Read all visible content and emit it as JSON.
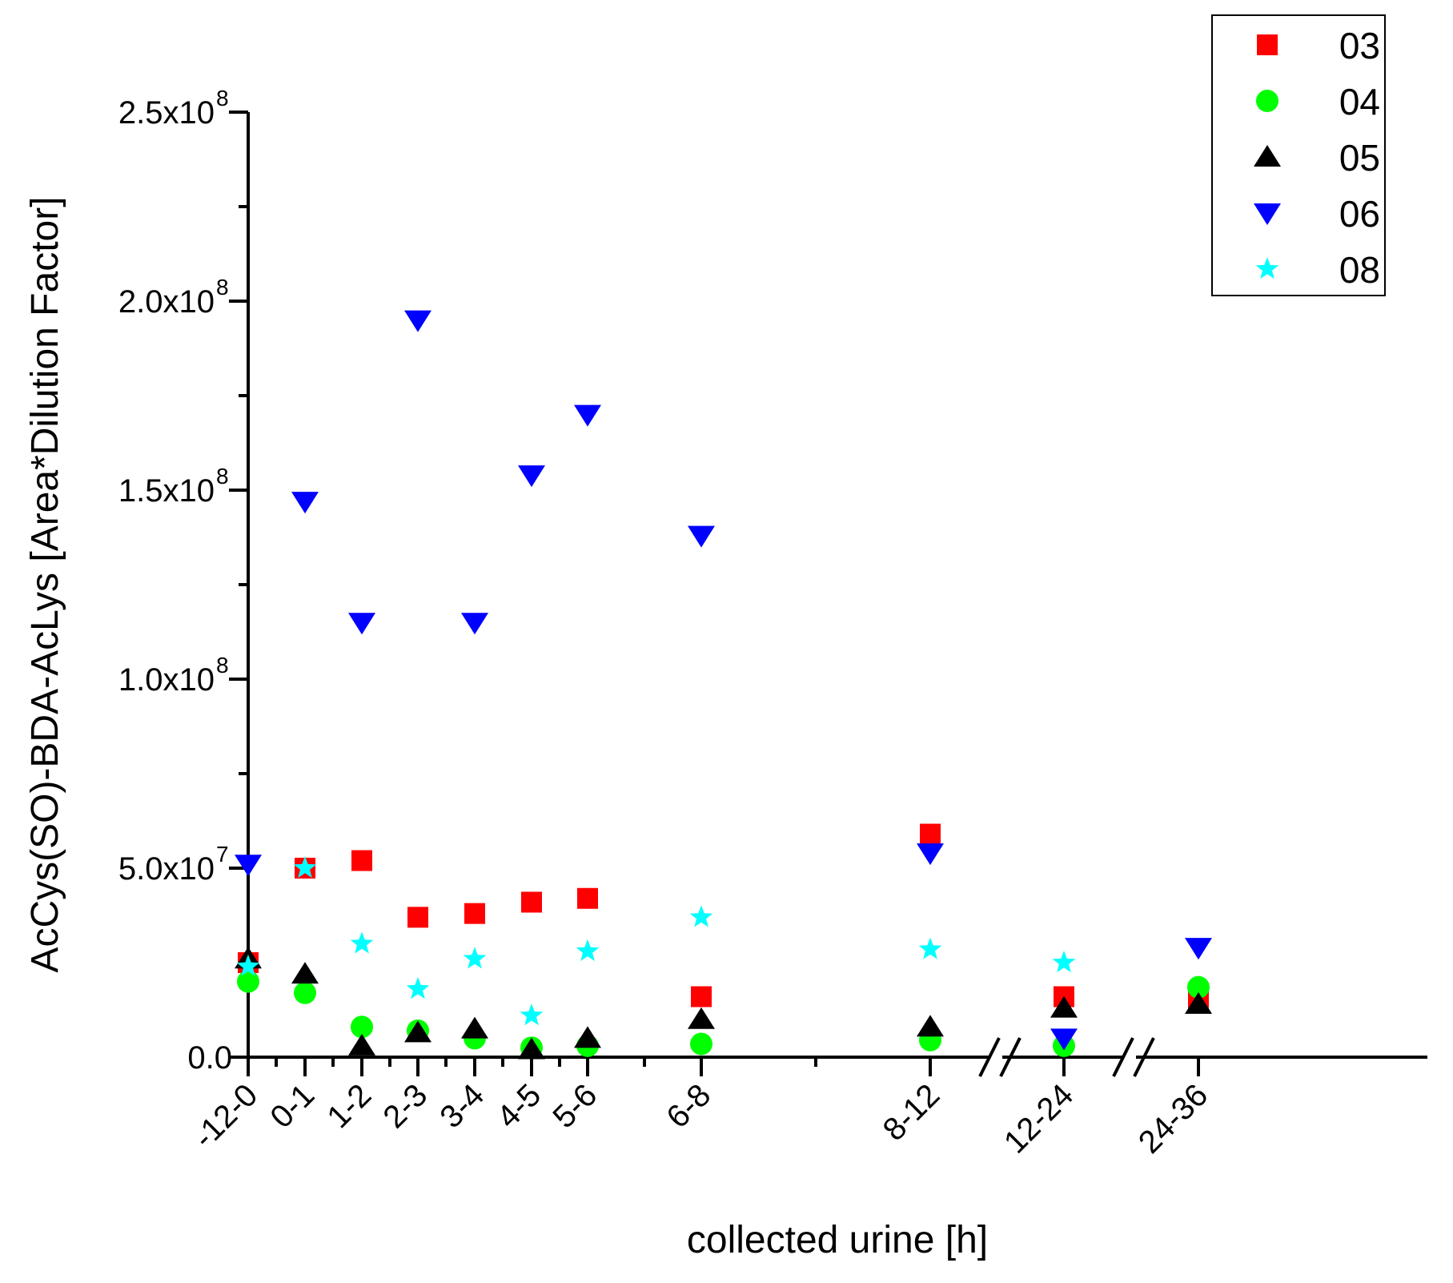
{
  "chart_data": {
    "type": "scatter",
    "title": "",
    "xlabel": "collected urine [h]",
    "ylabel": "AcCys(SO)-BDA-AcLys [Area*Dilution Factor]",
    "ylim": [
      0,
      250000000
    ],
    "y_ticks": [
      {
        "value": 0,
        "label": "0.0",
        "exp": ""
      },
      {
        "value": 50000000,
        "label": "5.0x10",
        "exp": "7"
      },
      {
        "value": 100000000,
        "label": "1.0x10",
        "exp": "8"
      },
      {
        "value": 150000000,
        "label": "1.5x10",
        "exp": "8"
      },
      {
        "value": 200000000,
        "label": "2.0x10",
        "exp": "8"
      },
      {
        "value": 250000000,
        "label": "2.5x10",
        "exp": "8"
      }
    ],
    "categories": [
      "-12-0",
      "0-1",
      "1-2",
      "2-3",
      "3-4",
      "4-5",
      "5-6",
      "6-8",
      "8-12",
      "12-24",
      "24-36"
    ],
    "axis_breaks": [
      "between 8-12 and 12-24",
      "between 12-24 and 24-36"
    ],
    "grid": false,
    "legend_position": "top-right",
    "series": [
      {
        "name": "03",
        "marker": "square",
        "color": "#ff0000",
        "values": [
          25000000,
          50000000,
          52000000,
          37000000,
          38000000,
          41000000,
          42000000,
          16000000,
          59000000,
          16000000,
          15000000
        ]
      },
      {
        "name": "04",
        "marker": "circle",
        "color": "#00ff00",
        "values": [
          20000000,
          17000000,
          8000000,
          7000000,
          5000000,
          2500000,
          3000000,
          3500000,
          4500000,
          3000000,
          18500000
        ]
      },
      {
        "name": "05",
        "marker": "triangle-up",
        "color": "#000000",
        "values": [
          26000000,
          22000000,
          3000000,
          6500000,
          7500000,
          2000000,
          5000000,
          10000000,
          8000000,
          13000000,
          14000000
        ]
      },
      {
        "name": "06",
        "marker": "triangle-down",
        "color": "#0000ff",
        "values": [
          51000000,
          147000000,
          115000000,
          195000000,
          115000000,
          154000000,
          170000000,
          138000000,
          54000000,
          5000000,
          29000000
        ]
      },
      {
        "name": "08",
        "marker": "star",
        "color": "#00ffff",
        "values": [
          24000000,
          50000000,
          30000000,
          18000000,
          26000000,
          11000000,
          28000000,
          37000000,
          28500000,
          25000000,
          null
        ]
      }
    ]
  }
}
